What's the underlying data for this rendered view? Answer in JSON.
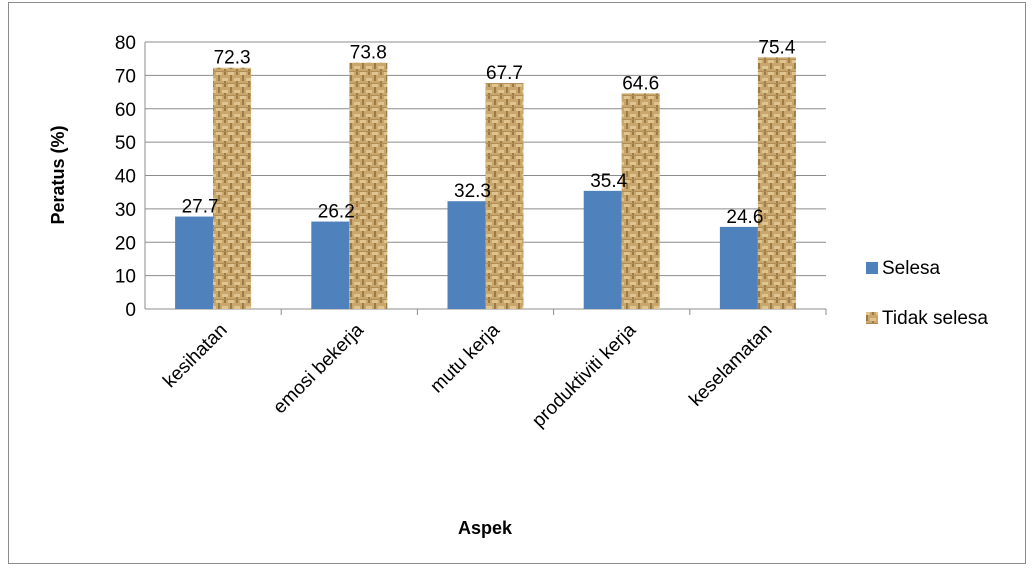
{
  "chart_data": {
    "type": "bar",
    "categories": [
      "kesihatan",
      "emosi bekerja",
      "mutu kerja",
      "produktiviti kerja",
      "keselamatan"
    ],
    "series": [
      {
        "name": "Selesa",
        "values": [
          27.7,
          26.2,
          32.3,
          35.4,
          24.6
        ],
        "color": "#4f81bd",
        "pattern": "solid"
      },
      {
        "name": "Tidak selesa",
        "values": [
          72.3,
          73.8,
          67.7,
          64.6,
          75.4
        ],
        "color": "#c8a56a",
        "pattern": "burlap-texture"
      }
    ],
    "xlabel": "Aspek",
    "ylabel": "Peratus (%)",
    "ylim": [
      0,
      80
    ],
    "yticks": [
      0,
      10,
      20,
      30,
      40,
      50,
      60,
      70,
      80
    ],
    "grid": true,
    "legend_position": "right",
    "data_labels": true
  }
}
